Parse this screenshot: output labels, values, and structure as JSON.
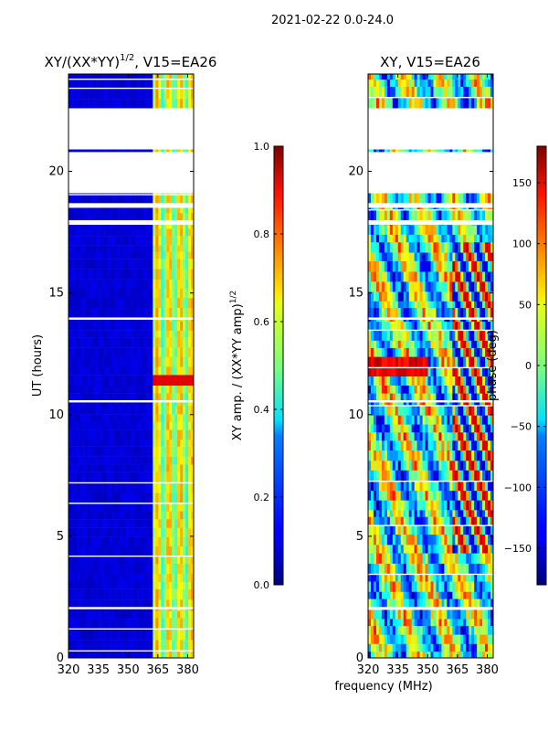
{
  "figure": {
    "suptitle": "2021-02-22 0.0-24.0",
    "xlabel": "frequency (MHz)"
  },
  "chart_data": [
    {
      "type": "heatmap",
      "title_main": "XY/(XX*YY)",
      "title_sup": "1/2",
      "title_tail": ", V15=EA26",
      "ylabel": "UT (hours)",
      "xlim": [
        320,
        383
      ],
      "ylim": [
        0,
        24
      ],
      "xticks": [
        "320",
        "335",
        "350",
        "365",
        "380"
      ],
      "xtick_values": [
        320,
        335,
        350,
        365,
        380
      ],
      "yticks": [
        "0",
        "5",
        "10",
        "15",
        "20"
      ],
      "ytick_values": [
        0,
        5,
        10,
        15,
        20
      ],
      "colorbar": {
        "label_main": "XY amp. / (XX*YY amp)",
        "label_sup": "1/2",
        "range": [
          0.0,
          1.0
        ],
        "ticks": [
          "0.0",
          "0.2",
          "0.4",
          "0.6",
          "0.8",
          "1.0"
        ],
        "tick_values": [
          0.0,
          0.2,
          0.4,
          0.6,
          0.8,
          1.0
        ],
        "colormap": "jet"
      },
      "data_bands_hours": [
        [
          0.0,
          2.0
        ],
        [
          2.1,
          10.5
        ],
        [
          10.6,
          13.9
        ],
        [
          14.0,
          17.8
        ],
        [
          18.0,
          18.5
        ],
        [
          18.7,
          19.1
        ],
        [
          20.8,
          20.9
        ],
        [
          22.6,
          24.0
        ]
      ]
    },
    {
      "type": "heatmap",
      "title": "XY, V15=EA26",
      "xlim": [
        320,
        383
      ],
      "ylim": [
        0,
        24
      ],
      "xticks": [
        "320",
        "335",
        "350",
        "365",
        "380"
      ],
      "xtick_values": [
        320,
        335,
        350,
        365,
        380
      ],
      "yticks": [
        "0",
        "5",
        "10",
        "15",
        "20"
      ],
      "ytick_values": [
        0,
        5,
        10,
        15,
        20
      ],
      "colorbar": {
        "label": "phase (deg)",
        "range": [
          -180,
          180
        ],
        "ticks": [
          "−150",
          "−100",
          "−50",
          "0",
          "50",
          "100",
          "150"
        ],
        "tick_values": [
          -150,
          -100,
          -50,
          0,
          50,
          100,
          150
        ],
        "colormap": "jet"
      },
      "data_bands_hours": [
        [
          0.0,
          2.0
        ],
        [
          2.1,
          10.5
        ],
        [
          10.6,
          13.9
        ],
        [
          14.0,
          17.8
        ],
        [
          18.0,
          18.5
        ],
        [
          18.7,
          19.1
        ],
        [
          20.8,
          20.9
        ],
        [
          22.6,
          24.0
        ]
      ]
    }
  ]
}
